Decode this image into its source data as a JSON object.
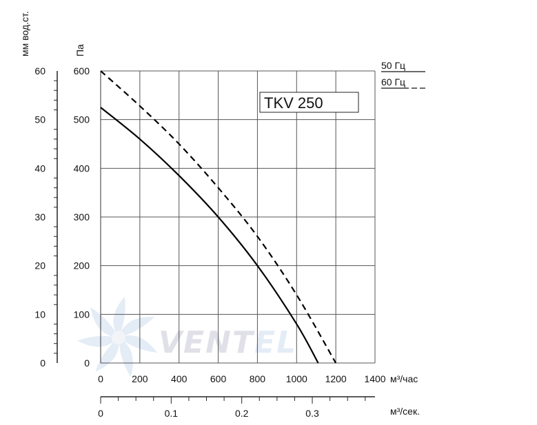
{
  "chart_data": {
    "type": "line",
    "model": "TKV 250",
    "x_primary": {
      "label": "м³/час",
      "range": [
        0,
        1400
      ],
      "ticks": [
        "0",
        "200",
        "400",
        "600",
        "800",
        "1000",
        "1200",
        "1400"
      ]
    },
    "x_secondary": {
      "label": "м³/сек.",
      "ticks": [
        {
          "value": 0,
          "label": "0"
        },
        {
          "value": 0.1,
          "label": "0.1"
        },
        {
          "value": 0.2,
          "label": "0.2"
        },
        {
          "value": 0.3,
          "label": "0.3"
        }
      ]
    },
    "y_primary": {
      "label": "Па",
      "range": [
        0,
        600
      ],
      "ticks": [
        "0",
        "100",
        "200",
        "300",
        "400",
        "500",
        "600"
      ]
    },
    "y_secondary": {
      "label": "мм вод.ст.",
      "ticks": [
        "0",
        "10",
        "20",
        "30",
        "40",
        "50",
        "60"
      ]
    },
    "grid": true,
    "legend": [
      {
        "label": "50 Гц",
        "style": "solid"
      },
      {
        "label": "60 Гц",
        "style": "dashed"
      }
    ],
    "series": [
      {
        "name": "50 Гц",
        "style": "solid",
        "x": [
          0,
          200,
          400,
          600,
          800,
          1000,
          1110
        ],
        "y": [
          525,
          460,
          385,
          300,
          200,
          80,
          0
        ]
      },
      {
        "name": "60 Гц",
        "style": "dashed",
        "x": [
          0,
          200,
          400,
          600,
          800,
          1000,
          1200
        ],
        "y": [
          600,
          528,
          450,
          360,
          260,
          140,
          0
        ]
      }
    ],
    "colors": {
      "line": "#000000",
      "grid": "#555555",
      "watermark_text": "#e0e0e8",
      "watermark_accent": "#e4ecf6"
    },
    "watermark": {
      "brand": "VENTEL"
    }
  }
}
